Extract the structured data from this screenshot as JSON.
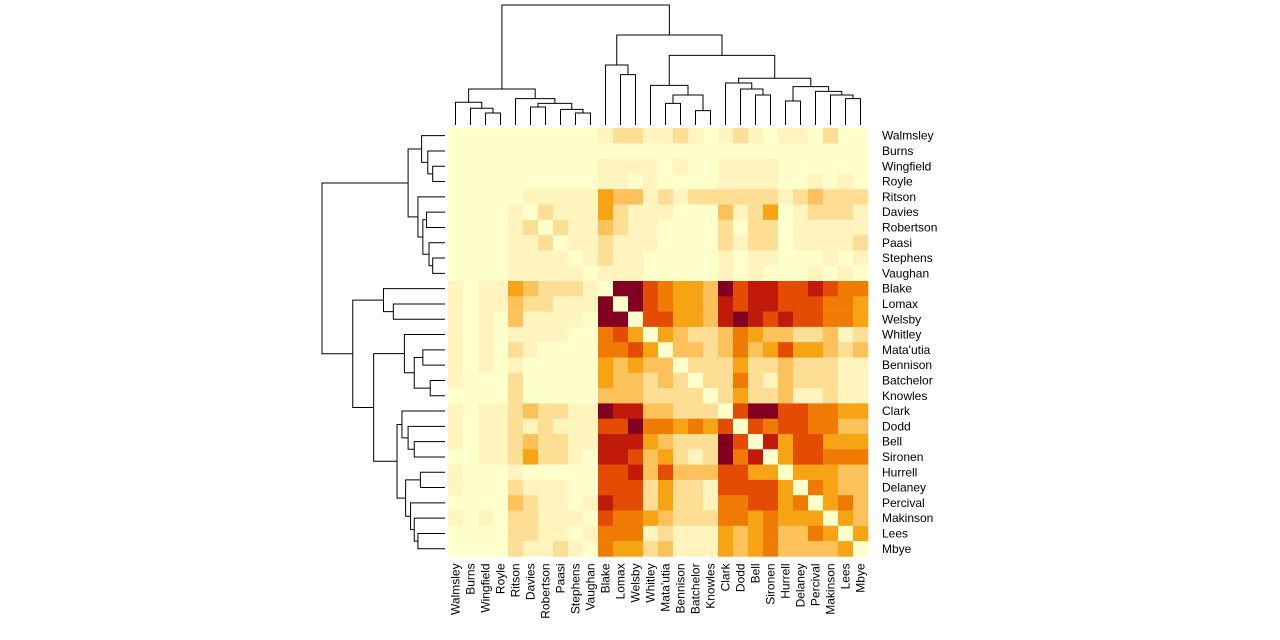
{
  "chart_data": {
    "type": "heatmap",
    "labels": [
      "Walmsley",
      "Burns",
      "Wingfield",
      "Royle",
      "Ritson",
      "Davies",
      "Robertson",
      "Paasi",
      "Stephens",
      "Vaughan",
      "Blake",
      "Lomax",
      "Welsby",
      "Whitley",
      "Mata'utia",
      "Bennison",
      "Batchelor",
      "Knowles",
      "Clark",
      "Dodd",
      "Bell",
      "Sironen",
      "Hurrell",
      "Delaney",
      "Percival",
      "Makinson",
      "Lees",
      "Mbye"
    ],
    "colors": [
      "#FFFFCC",
      "#FFF3BE",
      "#FDDE94",
      "#FBC25C",
      "#F6A314",
      "#EF7B05",
      "#E34C02",
      "#C11A0A",
      "#820020"
    ],
    "values": [
      [
        0,
        0,
        0,
        0,
        0,
        0,
        0,
        0,
        0,
        0,
        1,
        2,
        2,
        1,
        1,
        2,
        1,
        0,
        1,
        2,
        1,
        0,
        1,
        1,
        0,
        2,
        0,
        0
      ],
      [
        0,
        0,
        0,
        0,
        0,
        0,
        0,
        0,
        0,
        0,
        0,
        0,
        0,
        0,
        0,
        0,
        0,
        0,
        0,
        0,
        0,
        0,
        0,
        0,
        0,
        0,
        0,
        0
      ],
      [
        0,
        0,
        0,
        0,
        0,
        0,
        0,
        0,
        0,
        0,
        1,
        1,
        1,
        1,
        0,
        1,
        0,
        0,
        1,
        1,
        1,
        1,
        0,
        0,
        0,
        0,
        0,
        0
      ],
      [
        0,
        0,
        0,
        0,
        0,
        0,
        0,
        0,
        0,
        0,
        1,
        1,
        0,
        1,
        0,
        0,
        0,
        0,
        1,
        1,
        1,
        1,
        0,
        0,
        1,
        0,
        1,
        0
      ],
      [
        0,
        0,
        0,
        0,
        0,
        1,
        1,
        1,
        1,
        1,
        4,
        3,
        3,
        1,
        2,
        1,
        2,
        2,
        2,
        2,
        2,
        2,
        1,
        2,
        3,
        2,
        2,
        2
      ],
      [
        0,
        0,
        0,
        0,
        1,
        0,
        2,
        1,
        1,
        1,
        4,
        2,
        1,
        1,
        1,
        0,
        0,
        0,
        3,
        1,
        2,
        4,
        0,
        1,
        2,
        2,
        2,
        1
      ],
      [
        0,
        0,
        0,
        0,
        1,
        2,
        0,
        2,
        1,
        1,
        3,
        2,
        1,
        1,
        0,
        0,
        0,
        0,
        2,
        0,
        2,
        2,
        0,
        1,
        1,
        1,
        1,
        1
      ],
      [
        0,
        0,
        0,
        0,
        1,
        1,
        2,
        0,
        1,
        1,
        2,
        1,
        1,
        1,
        0,
        0,
        0,
        0,
        2,
        1,
        2,
        2,
        0,
        1,
        1,
        1,
        1,
        2
      ],
      [
        0,
        0,
        0,
        0,
        1,
        1,
        1,
        1,
        0,
        1,
        2,
        1,
        1,
        0,
        0,
        0,
        0,
        0,
        1,
        0,
        1,
        1,
        0,
        0,
        0,
        1,
        0,
        1
      ],
      [
        0,
        0,
        0,
        0,
        1,
        1,
        1,
        1,
        1,
        0,
        1,
        1,
        1,
        0,
        0,
        0,
        0,
        0,
        1,
        0,
        1,
        0,
        0,
        0,
        1,
        0,
        1,
        0
      ],
      [
        1,
        0,
        1,
        1,
        4,
        3,
        2,
        2,
        2,
        1,
        0,
        8,
        8,
        6,
        5,
        4,
        4,
        3,
        8,
        6,
        7,
        7,
        6,
        6,
        7,
        6,
        5,
        5
      ],
      [
        1,
        0,
        1,
        1,
        3,
        2,
        2,
        1,
        1,
        1,
        8,
        0,
        8,
        6,
        5,
        4,
        4,
        3,
        7,
        6,
        7,
        7,
        6,
        6,
        6,
        5,
        5,
        4
      ],
      [
        1,
        0,
        1,
        0,
        3,
        1,
        1,
        1,
        1,
        0,
        8,
        8,
        0,
        6,
        6,
        4,
        4,
        3,
        7,
        8,
        7,
        6,
        7,
        6,
        6,
        5,
        5,
        4
      ],
      [
        1,
        0,
        1,
        0,
        1,
        1,
        1,
        1,
        0,
        0,
        5,
        6,
        4,
        0,
        4,
        3,
        2,
        2,
        3,
        5,
        4,
        3,
        3,
        2,
        2,
        3,
        1,
        2
      ],
      [
        1,
        0,
        1,
        0,
        2,
        1,
        0,
        0,
        0,
        0,
        5,
        5,
        6,
        4,
        0,
        3,
        3,
        2,
        3,
        5,
        3,
        4,
        6,
        4,
        4,
        3,
        2,
        3
      ],
      [
        1,
        0,
        1,
        0,
        1,
        0,
        0,
        0,
        0,
        0,
        4,
        3,
        4,
        3,
        3,
        0,
        2,
        2,
        2,
        4,
        2,
        2,
        3,
        2,
        2,
        2,
        1,
        1
      ],
      [
        1,
        0,
        0,
        0,
        2,
        0,
        0,
        0,
        0,
        0,
        4,
        3,
        3,
        2,
        3,
        2,
        0,
        2,
        2,
        5,
        2,
        1,
        3,
        2,
        2,
        2,
        1,
        1
      ],
      [
        0,
        0,
        0,
        0,
        2,
        0,
        0,
        0,
        0,
        0,
        3,
        3,
        3,
        2,
        2,
        2,
        2,
        0,
        2,
        4,
        2,
        2,
        3,
        1,
        1,
        2,
        1,
        1
      ],
      [
        1,
        0,
        1,
        1,
        2,
        3,
        2,
        2,
        1,
        1,
        8,
        7,
        7,
        3,
        3,
        2,
        2,
        2,
        0,
        6,
        8,
        8,
        6,
        6,
        5,
        5,
        4,
        4
      ],
      [
        1,
        0,
        1,
        1,
        2,
        1,
        2,
        1,
        1,
        1,
        6,
        6,
        8,
        5,
        5,
        4,
        5,
        4,
        6,
        0,
        6,
        5,
        6,
        6,
        5,
        5,
        3,
        3
      ],
      [
        1,
        0,
        1,
        1,
        2,
        3,
        2,
        2,
        1,
        1,
        7,
        7,
        7,
        4,
        3,
        2,
        2,
        2,
        8,
        6,
        0,
        7,
        4,
        6,
        6,
        4,
        4,
        4
      ],
      [
        0,
        0,
        1,
        1,
        2,
        4,
        2,
        2,
        1,
        0,
        7,
        7,
        6,
        3,
        4,
        2,
        1,
        2,
        8,
        5,
        7,
        0,
        4,
        6,
        6,
        5,
        5,
        5
      ],
      [
        1,
        0,
        0,
        0,
        1,
        0,
        0,
        0,
        0,
        0,
        6,
        6,
        7,
        3,
        6,
        3,
        3,
        3,
        6,
        6,
        4,
        4,
        0,
        4,
        4,
        4,
        3,
        3
      ],
      [
        1,
        0,
        0,
        0,
        2,
        1,
        1,
        1,
        0,
        0,
        6,
        6,
        6,
        2,
        4,
        2,
        2,
        1,
        6,
        6,
        6,
        6,
        4,
        0,
        5,
        4,
        3,
        3
      ],
      [
        0,
        0,
        0,
        0,
        3,
        2,
        1,
        1,
        0,
        1,
        7,
        6,
        6,
        2,
        4,
        2,
        2,
        1,
        5,
        5,
        6,
        6,
        4,
        5,
        0,
        4,
        5,
        3
      ],
      [
        1,
        0,
        1,
        0,
        2,
        2,
        1,
        1,
        1,
        0,
        6,
        5,
        5,
        4,
        3,
        2,
        2,
        2,
        5,
        5,
        4,
        5,
        4,
        4,
        4,
        0,
        4,
        3
      ],
      [
        0,
        0,
        0,
        0,
        2,
        2,
        1,
        1,
        0,
        1,
        5,
        5,
        5,
        1,
        2,
        1,
        1,
        1,
        4,
        3,
        4,
        5,
        3,
        3,
        5,
        4,
        0,
        4
      ],
      [
        0,
        0,
        0,
        0,
        2,
        1,
        1,
        2,
        1,
        0,
        5,
        4,
        4,
        2,
        3,
        1,
        1,
        1,
        4,
        3,
        4,
        5,
        3,
        3,
        3,
        3,
        4,
        0
      ]
    ],
    "tree": [
      100,
      [
        30,
        [
          19,
          0,
          [
            14,
            1,
            [
              10,
              2,
              3
            ]
          ]
        ],
        [
          22,
          4,
          [
            18,
            [
              15,
              5,
              6
            ],
            [
              13,
              7,
              [
                10,
                8,
                9
              ]
            ]
          ]
        ]
      ],
      [
        75,
        [
          50,
          10,
          [
            42,
            11,
            12
          ]
        ],
        [
          58,
          [
            33,
            13,
            [
              25,
              [
                18,
                14,
                15
              ],
              [
                12,
                16,
                17
              ]
            ]
          ],
          [
            39,
            [
              35,
              18,
              [
                30,
                19,
                [
                  25,
                  20,
                  21
                ]
              ]
            ],
            [
              32,
              [
                20,
                22,
                23
              ],
              [
                28,
                24,
                [
                  25,
                  25,
                  [
                    22,
                    26,
                    27
                  ]
                ]
              ]
            ]
          ]
        ]
      ]
    ]
  }
}
